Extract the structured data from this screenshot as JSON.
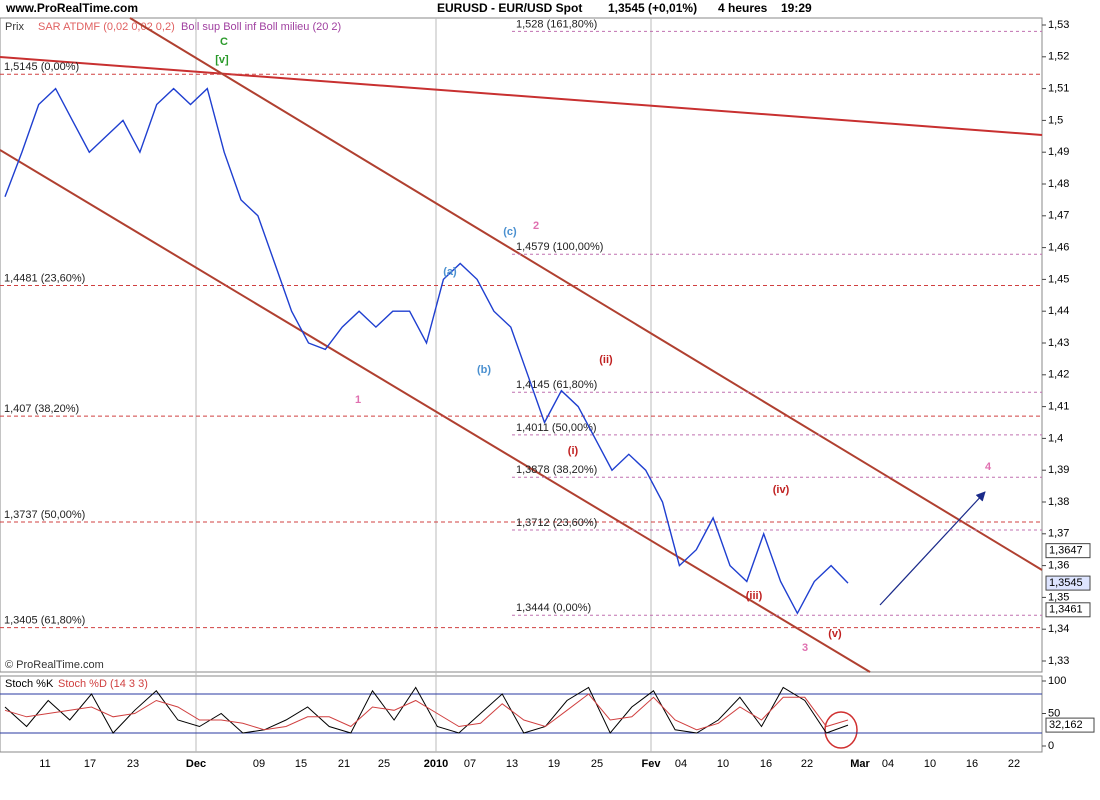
{
  "header": {
    "site": "www.ProRealTime.com",
    "instrument": "EURUSD - EUR/USD Spot",
    "quote": "1,3545 (+0,01%)",
    "period": "4 heures",
    "time": "19:29"
  },
  "chart_data": [
    {
      "type": "line",
      "price_label": "Prix",
      "indicators": [
        "SAR ATDMF (0,02 0,02 0,2)",
        "Boll sup Boll inf Boll milieu (20 2)"
      ],
      "copyright": "© ProRealTime.com",
      "series": [
        {
          "color": "#1f3fd0",
          "values": [
            1.476,
            1.49,
            1.505,
            1.51,
            1.5,
            1.49,
            1.495,
            1.5,
            1.49,
            1.505,
            1.51,
            1.505,
            1.51,
            1.49,
            1.475,
            1.47,
            1.455,
            1.44,
            1.43,
            1.428,
            1.435,
            1.44,
            1.435,
            1.44,
            1.44,
            1.43,
            1.45,
            1.455,
            1.45,
            1.44,
            1.435,
            1.42,
            1.405,
            1.415,
            1.41,
            1.4,
            1.39,
            1.395,
            1.39,
            1.38,
            1.36,
            1.365,
            1.375,
            1.36,
            1.355,
            1.37,
            1.355,
            1.345,
            1.355,
            1.36,
            1.3545
          ]
        }
      ],
      "x_labels": [
        "11",
        "17",
        "23",
        "Dec",
        "09",
        "15",
        "21",
        "25",
        "2010",
        "07",
        "13",
        "19",
        "25",
        "Fev",
        "04",
        "10",
        "16",
        "22",
        "Mar",
        "04",
        "10",
        "16",
        "22"
      ],
      "ylim": [
        1.33,
        1.53
      ],
      "yticks": [
        {
          "value": 1.33,
          "label": "1,33"
        },
        {
          "value": 1.34,
          "label": "1,34"
        },
        {
          "value": 1.35,
          "label": "1,35"
        },
        {
          "value": 1.36,
          "label": "1,36"
        },
        {
          "value": 1.37,
          "label": "1,37"
        },
        {
          "value": 1.38,
          "label": "1,38"
        },
        {
          "value": 1.39,
          "label": "1,39"
        },
        {
          "value": 1.4,
          "label": "1,4"
        },
        {
          "value": 1.41,
          "label": "1,41"
        },
        {
          "value": 1.42,
          "label": "1,42"
        },
        {
          "value": 1.43,
          "label": "1,43"
        },
        {
          "value": 1.44,
          "label": "1,44"
        },
        {
          "value": 1.45,
          "label": "1,45"
        },
        {
          "value": 1.46,
          "label": "1,46"
        },
        {
          "value": 1.47,
          "label": "1,47"
        },
        {
          "value": 1.48,
          "label": "1,48"
        },
        {
          "value": 1.49,
          "label": "1,49"
        },
        {
          "value": 1.5,
          "label": "1,5"
        },
        {
          "value": 1.51,
          "label": "1,51"
        },
        {
          "value": 1.52,
          "label": "1,52"
        },
        {
          "value": 1.53,
          "label": "1,53"
        }
      ],
      "price_boxes": [
        {
          "value": 1.3647,
          "label": "1,3647"
        },
        {
          "value": 1.3545,
          "label": "1,3545"
        },
        {
          "value": 1.3461,
          "label": "1,3461"
        }
      ],
      "fib_left": [
        {
          "value": 1.5145,
          "label": "1,5145 (0,00%)"
        },
        {
          "value": 1.4481,
          "label": "1,4481 (23,60%)"
        },
        {
          "value": 1.407,
          "label": "1,407 (38,20%)"
        },
        {
          "value": 1.3737,
          "label": "1,3737 (50,00%)"
        },
        {
          "value": 1.3405,
          "label": "1,3405 (61,80%)"
        }
      ],
      "fib_right": [
        {
          "value": 1.528,
          "label": "1,528 (161,80%)"
        },
        {
          "value": 1.4579,
          "label": "1,4579 (100,00%)"
        },
        {
          "value": 1.4145,
          "label": "1,4145 (61,80%)"
        },
        {
          "value": 1.4011,
          "label": "1,4011 (50,00%)"
        },
        {
          "value": 1.3878,
          "label": "1,3878 (38,20%)"
        },
        {
          "value": 1.3712,
          "label": "1,3712 (23,60%)"
        },
        {
          "value": 1.3444,
          "label": "1,3444 (0,00%)"
        }
      ],
      "waves": [
        {
          "text": "C",
          "color": "#2a9a2a"
        },
        {
          "text": "[v]",
          "color": "#2a9a2a"
        },
        {
          "text": "1",
          "color": "#e070b0"
        },
        {
          "text": "2",
          "color": "#e070b0"
        },
        {
          "text": "3",
          "color": "#e070b0"
        },
        {
          "text": "4",
          "color": "#e070b0"
        },
        {
          "text": "(a)",
          "color": "#4a90d0"
        },
        {
          "text": "(b)",
          "color": "#4a90d0"
        },
        {
          "text": "(c)",
          "color": "#4a90d0"
        },
        {
          "text": "(i)",
          "color": "#c02020"
        },
        {
          "text": "(ii)",
          "color": "#c02020"
        },
        {
          "text": "(iii)",
          "color": "#c02020"
        },
        {
          "text": "(iv)",
          "color": "#c02020"
        },
        {
          "text": "(v)",
          "color": "#c02020"
        }
      ]
    },
    {
      "type": "line",
      "title": "Stoch %K",
      "subtitle": "Stoch %D (14 3 3)",
      "series": [
        {
          "name": "Stoch %K",
          "color": "#000000",
          "values": [
            60,
            30,
            70,
            40,
            80,
            20,
            55,
            85,
            40,
            30,
            50,
            20,
            25,
            40,
            60,
            30,
            20,
            85,
            40,
            90,
            30,
            20,
            50,
            80,
            20,
            30,
            70,
            90,
            20,
            60,
            85,
            25,
            20,
            40,
            75,
            30,
            90,
            70,
            20,
            32.162
          ]
        },
        {
          "name": "Stoch %D",
          "color": "#d04040",
          "values": [
            55,
            45,
            50,
            55,
            60,
            45,
            50,
            70,
            60,
            40,
            40,
            35,
            25,
            30,
            45,
            45,
            30,
            60,
            55,
            70,
            50,
            30,
            35,
            65,
            40,
            30,
            55,
            80,
            40,
            45,
            75,
            40,
            25,
            35,
            60,
            40,
            75,
            75,
            30,
            40
          ]
        }
      ],
      "ylim": [
        0,
        100
      ],
      "yticks": [
        0,
        50,
        100
      ],
      "levels": [
        20,
        80
      ],
      "last_label": {
        "value": 32.162,
        "label": "32,162"
      }
    }
  ]
}
